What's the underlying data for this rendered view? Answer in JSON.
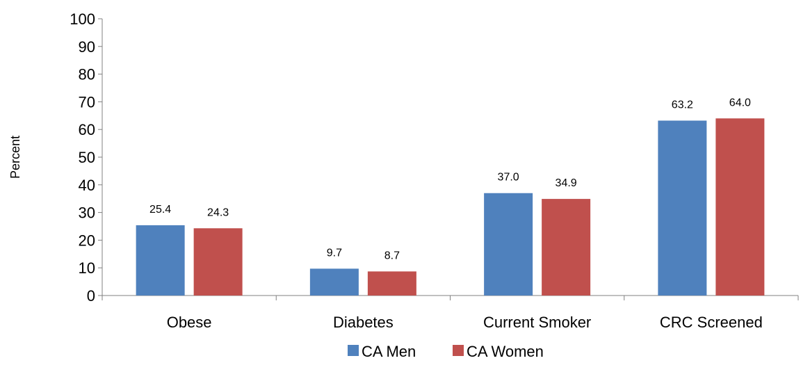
{
  "chart_data": {
    "type": "bar",
    "categories": [
      "Obese",
      "Diabetes",
      "Current Smoker",
      "CRC Screened"
    ],
    "series": [
      {
        "name": "CA Men",
        "values": [
          25.4,
          9.7,
          37.0,
          63.2
        ],
        "labels": [
          "25.4",
          "9.7",
          "37.0",
          "63.2"
        ],
        "color": "#4F81BD"
      },
      {
        "name": "CA Women",
        "values": [
          24.3,
          8.7,
          34.9,
          64.0
        ],
        "labels": [
          "24.3",
          "8.7",
          "34.9",
          "64.0"
        ],
        "color": "#C0504D"
      }
    ],
    "ylabel": "Percent",
    "xlabel": "",
    "ylim": [
      0,
      100
    ],
    "yticks": [
      "0",
      "10",
      "20",
      "30",
      "40",
      "50",
      "60",
      "70",
      "80",
      "90",
      "100"
    ],
    "grid": false,
    "legend_position": "bottom"
  }
}
